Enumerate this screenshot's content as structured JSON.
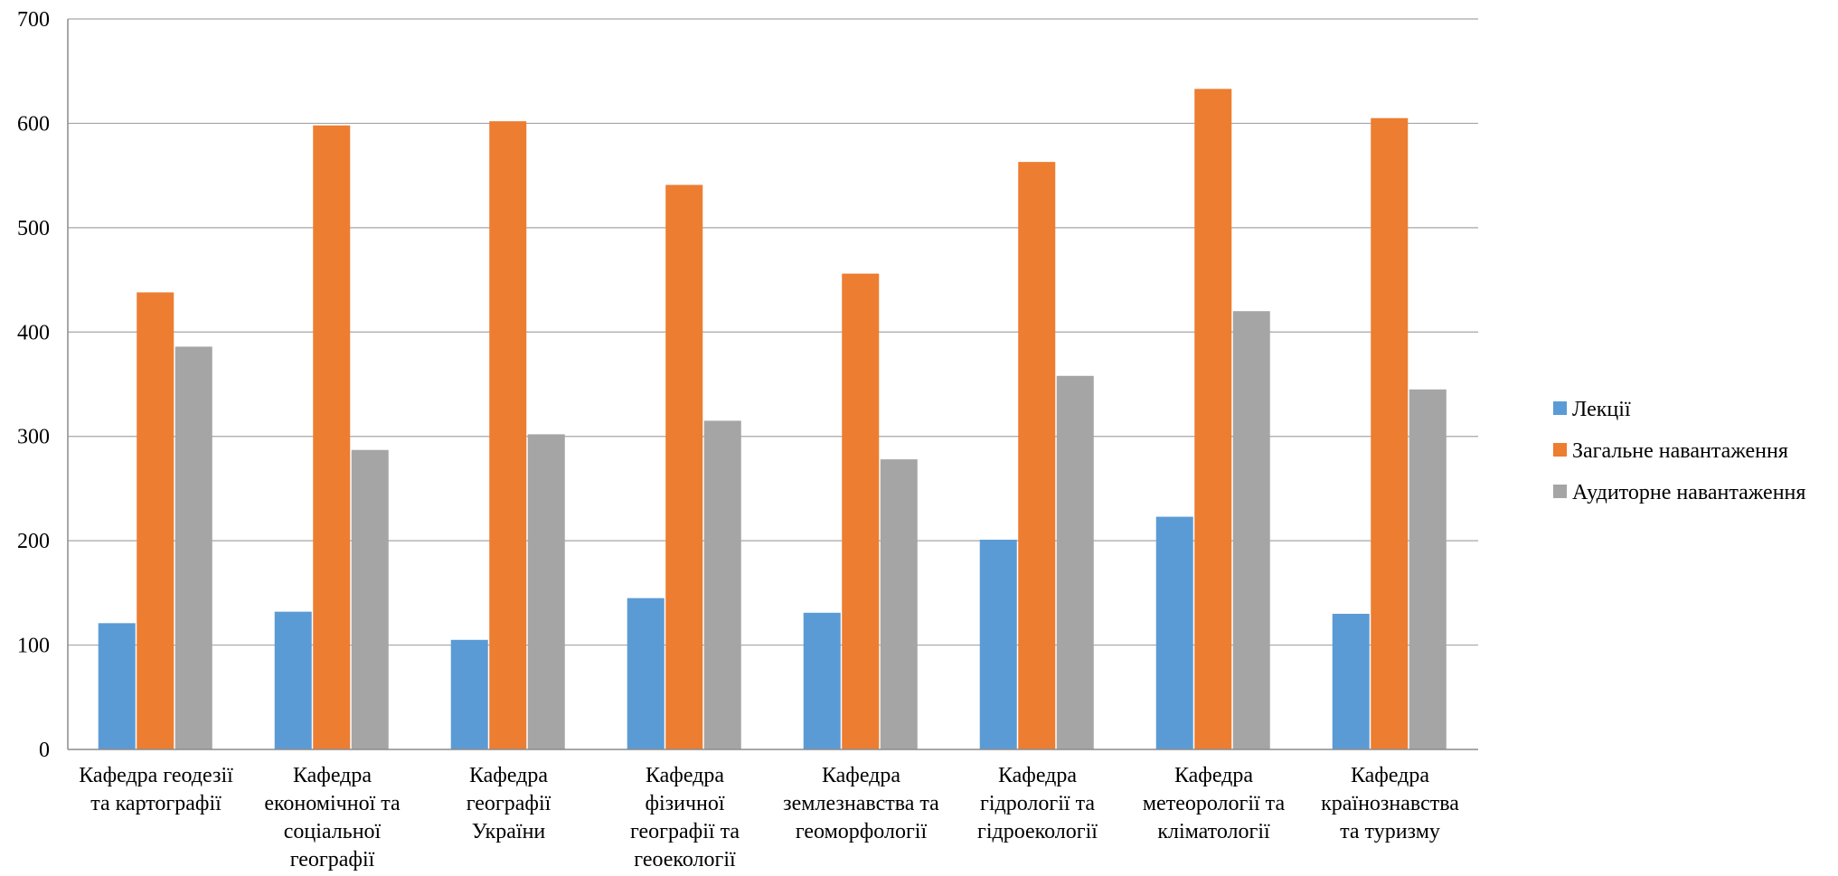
{
  "chart_data": {
    "type": "bar",
    "title": "",
    "xlabel": "",
    "ylabel": "",
    "ylim": [
      0,
      700
    ],
    "yticks": [
      0,
      100,
      200,
      300,
      400,
      500,
      600,
      700
    ],
    "grid": true,
    "legend_position": "right",
    "categories": [
      [
        "Кафедра геодезії",
        "та картографії"
      ],
      [
        "Кафедра",
        "економічної та",
        "соціальної",
        "географії"
      ],
      [
        "Кафедра",
        "географії",
        "України"
      ],
      [
        "Кафедра",
        "фізичної",
        "географії та",
        "геоекології"
      ],
      [
        "Кафедра",
        "землезнавства та",
        "геоморфології"
      ],
      [
        "Кафедра",
        "гідрології та",
        "гідроекології"
      ],
      [
        "Кафедра",
        "метеорології та",
        "кліматології"
      ],
      [
        "Кафедра",
        "країнознавства",
        "та туризму"
      ]
    ],
    "series": [
      {
        "name": "Лекції",
        "color": "#5b9bd5",
        "values": [
          121,
          132,
          105,
          145,
          131,
          201,
          223,
          130
        ]
      },
      {
        "name": "Загальне навантаження",
        "color": "#ed7d31",
        "values": [
          438,
          598,
          602,
          541,
          456,
          563,
          633,
          605
        ]
      },
      {
        "name": "Аудиторне навантаження",
        "color": "#a5a5a5",
        "values": [
          386,
          287,
          302,
          315,
          278,
          358,
          420,
          345
        ]
      }
    ]
  }
}
